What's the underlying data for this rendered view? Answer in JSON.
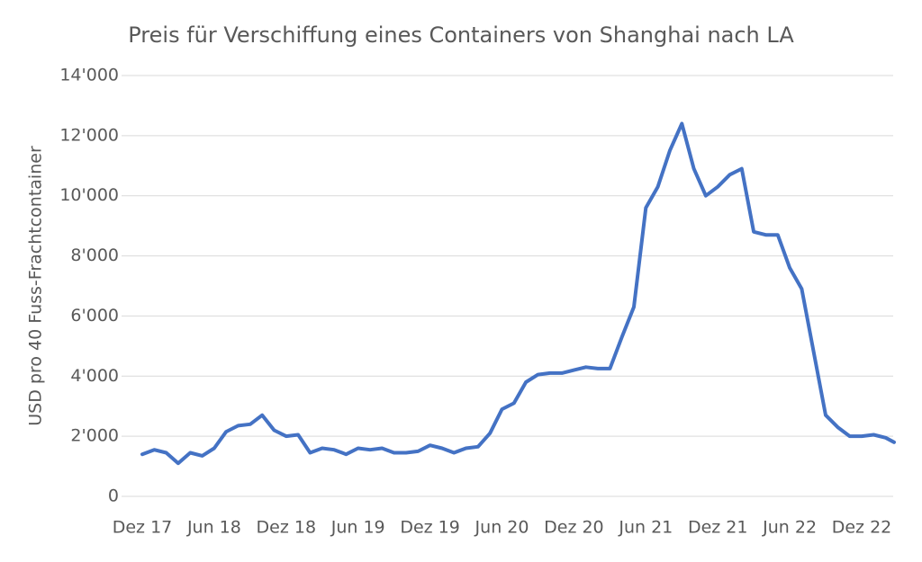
{
  "chart_data": {
    "type": "line",
    "title": "Preis für Verschiffung eines Containers von Shanghai nach LA",
    "y_label": "USD pro 40 Fuss-Frachtcontainer",
    "categories": [
      "Dez 17",
      null,
      null,
      null,
      null,
      null,
      "Jun 18",
      null,
      null,
      null,
      null,
      null,
      "Dez 18",
      null,
      null,
      null,
      null,
      null,
      "Jun 19",
      null,
      null,
      null,
      null,
      null,
      "Dez 19",
      null,
      null,
      null,
      null,
      null,
      "Jun 20",
      null,
      null,
      null,
      null,
      null,
      "Dez 20",
      null,
      null,
      null,
      null,
      null,
      "Jun 21",
      null,
      null,
      null,
      null,
      null,
      "Dez 21",
      null,
      null,
      null,
      null,
      null,
      "Jun 22",
      null,
      null,
      null,
      null,
      null,
      "Dez 22",
      null,
      null,
      null
    ],
    "series": [
      {
        "name": "Preis",
        "color": "#4472c4",
        "values": [
          1400,
          1550,
          1450,
          1100,
          1450,
          1350,
          1600,
          2150,
          2350,
          2400,
          2700,
          2200,
          2000,
          2050,
          1450,
          1600,
          1550,
          1400,
          1600,
          1550,
          1600,
          1450,
          1450,
          1500,
          1700,
          1600,
          1450,
          1600,
          1650,
          2100,
          2900,
          3100,
          3800,
          4050,
          4100,
          4100,
          4200,
          4300,
          4250,
          4250,
          5300,
          6300,
          9600,
          10300,
          11500,
          12400,
          10900,
          10000,
          10300,
          10700,
          10900,
          8800,
          8700,
          8700,
          7600,
          6900,
          4800,
          2700,
          2300,
          2000,
          2000,
          2050,
          1950,
          1800
        ]
      }
    ],
    "ylim": [
      0,
      14000
    ],
    "yticks": [
      0,
      {
        "value": 2000,
        "label": "2'000"
      },
      {
        "value": 4000,
        "label": "4'000"
      },
      {
        "value": 6000,
        "label": "6'000"
      },
      {
        "value": 8000,
        "label": "8'000"
      },
      {
        "value": 10000,
        "label": "10'000"
      },
      {
        "value": 12000,
        "label": "12'000"
      },
      {
        "value": 14000,
        "label": "14'000"
      }
    ],
    "grid": true
  }
}
